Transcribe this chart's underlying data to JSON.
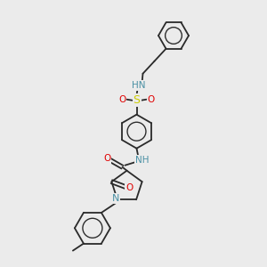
{
  "background_color": "#ebebeb",
  "bond_color": "#2a2a2a",
  "atom_colors": {
    "N": "#4a90a4",
    "O": "#e00000",
    "S": "#cccc00",
    "C": "#2a2a2a"
  },
  "figsize": [
    3.0,
    3.0
  ],
  "dpi": 100
}
